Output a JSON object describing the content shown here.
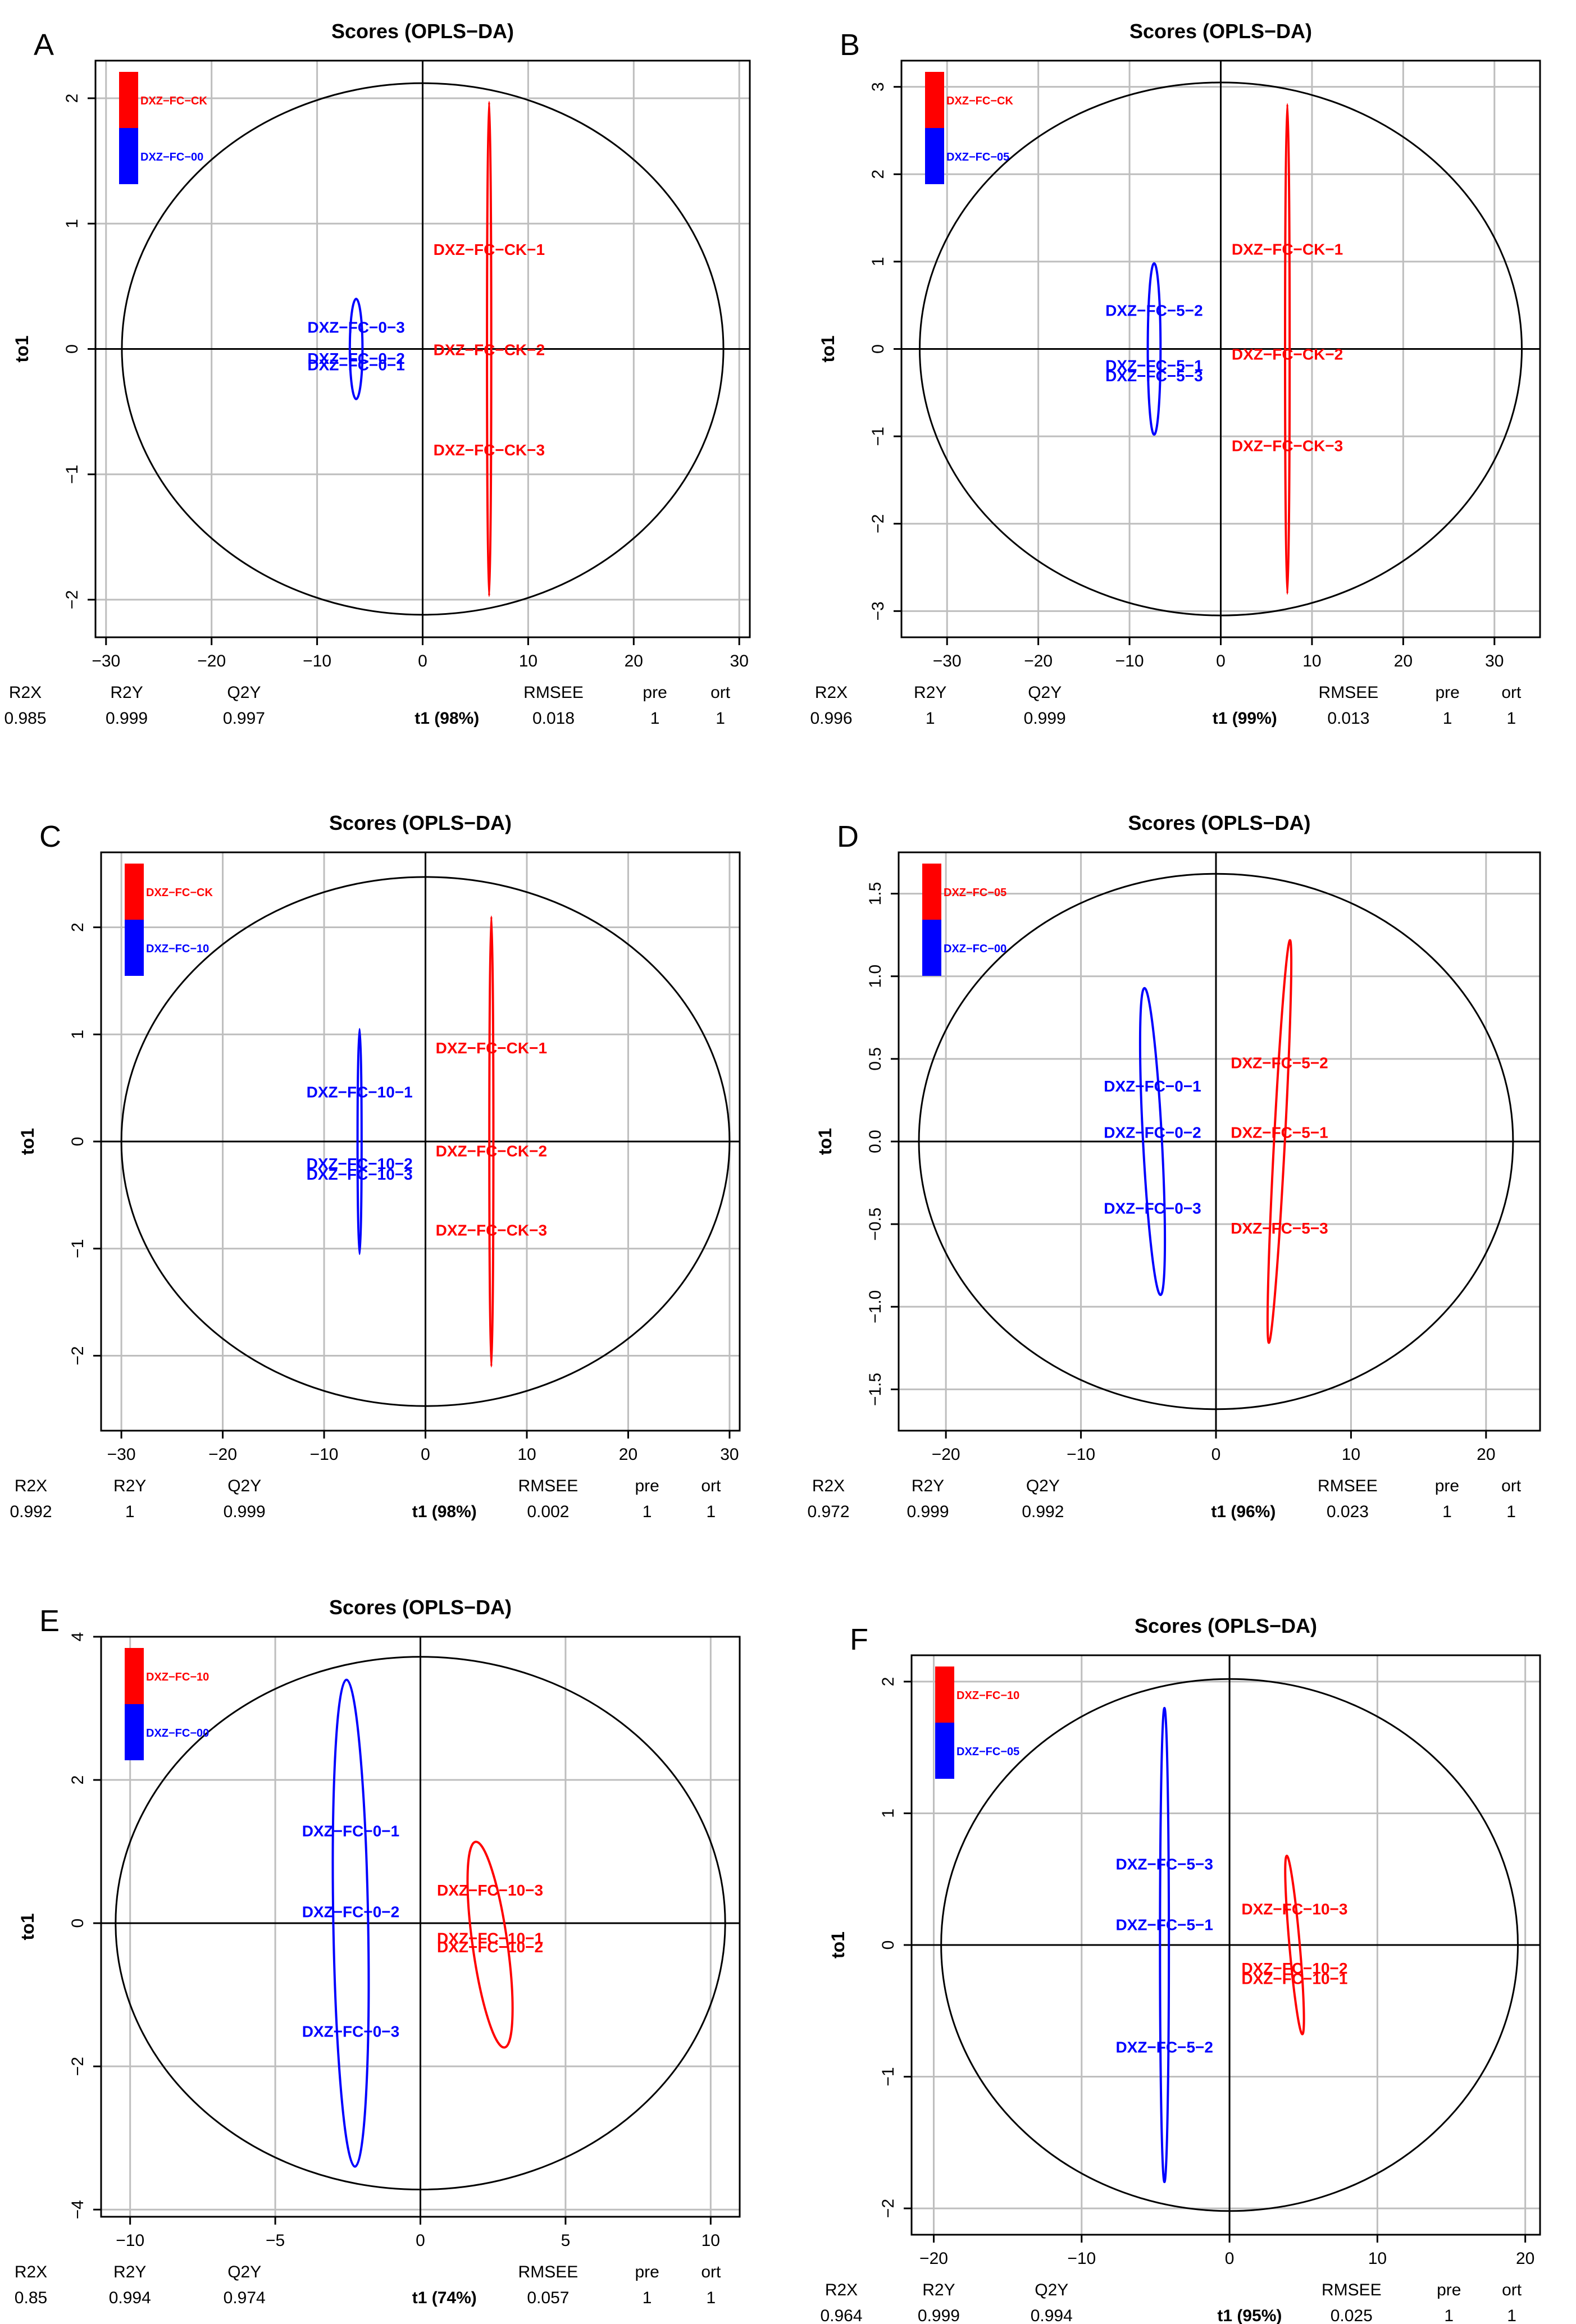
{
  "colors": {
    "red": "#ff0000",
    "blue": "#0000ff",
    "grid": "#bebebe",
    "axis": "#000000"
  },
  "stat_labels": [
    "R2X",
    "R2Y",
    "Q2Y",
    "RMSEE",
    "pre",
    "ort"
  ],
  "chart_data": [
    {
      "type": "scatter",
      "panel": "A",
      "title": "Scores (OPLS−DA)",
      "xlabel": "t1 (98%)",
      "ylabel": "to1",
      "xlim": [
        -31,
        31
      ],
      "ylim": [
        -2.3,
        2.3
      ],
      "xticks": [
        -30,
        -20,
        -10,
        0,
        10,
        20,
        30
      ],
      "yticks": [
        -2,
        -1,
        0,
        1,
        2
      ],
      "ellipse": {
        "rx": 28.5,
        "ry": 2.12
      },
      "legend": [
        {
          "name": "DXZ−FC−CK",
          "color": "red"
        },
        {
          "name": "DXZ−FC−00",
          "color": "blue"
        }
      ],
      "groups": [
        {
          "color": "red",
          "ellipse": {
            "cx": 6.3,
            "cy": 0,
            "rx": 0.2,
            "ry": 1.97
          },
          "points": [
            {
              "label": "DXZ−FC−CK−1",
              "x": 6.3,
              "y": 0.8
            },
            {
              "label": "DXZ−FC−CK−2",
              "x": 6.3,
              "y": 0.0
            },
            {
              "label": "DXZ−FC−CK−3",
              "x": 6.3,
              "y": -0.8
            }
          ]
        },
        {
          "color": "blue",
          "ellipse": {
            "cx": -6.3,
            "cy": 0,
            "rx": 0.6,
            "ry": 0.4
          },
          "points": [
            {
              "label": "DXZ−FC−0−3",
              "x": -6.3,
              "y": 0.18
            },
            {
              "label": "DXZ−FC−0−2",
              "x": -6.3,
              "y": -0.07
            },
            {
              "label": "DXZ−FC−0−1",
              "x": -6.3,
              "y": -0.12
            }
          ]
        }
      ],
      "stats": {
        "R2X": "0.985",
        "R2Y": "0.999",
        "Q2Y": "0.997",
        "RMSEE": "0.018",
        "pre": "1",
        "ort": "1"
      }
    },
    {
      "type": "scatter",
      "panel": "B",
      "title": "Scores (OPLS−DA)",
      "xlabel": "t1 (99%)",
      "ylabel": "to1",
      "xlim": [
        -35,
        35
      ],
      "ylim": [
        -3.3,
        3.3
      ],
      "xticks": [
        -30,
        -20,
        -10,
        0,
        10,
        20,
        30
      ],
      "yticks": [
        -3,
        -2,
        -1,
        0,
        1,
        2,
        3
      ],
      "ellipse": {
        "rx": 33,
        "ry": 3.05
      },
      "legend": [
        {
          "name": "DXZ−FC−CK",
          "color": "red"
        },
        {
          "name": "DXZ−FC−05",
          "color": "blue"
        }
      ],
      "groups": [
        {
          "color": "red",
          "ellipse": {
            "cx": 7.3,
            "cy": 0,
            "rx": 0.25,
            "ry": 2.8
          },
          "points": [
            {
              "label": "DXZ−FC−CK−1",
              "x": 7.3,
              "y": 1.15
            },
            {
              "label": "DXZ−FC−CK−2",
              "x": 7.3,
              "y": -0.05
            },
            {
              "label": "DXZ−FC−CK−3",
              "x": 7.3,
              "y": -1.1
            }
          ]
        },
        {
          "color": "blue",
          "ellipse": {
            "cx": -7.3,
            "cy": 0,
            "rx": 0.7,
            "ry": 0.98
          },
          "points": [
            {
              "label": "DXZ−FC−5−2",
              "x": -7.3,
              "y": 0.45
            },
            {
              "label": "DXZ−FC−5−1",
              "x": -7.3,
              "y": -0.18
            },
            {
              "label": "DXZ−FC−5−3",
              "x": -7.3,
              "y": -0.3
            }
          ]
        }
      ],
      "stats": {
        "R2X": "0.996",
        "R2Y": "1",
        "Q2Y": "0.999",
        "RMSEE": "0.013",
        "pre": "1",
        "ort": "1"
      }
    },
    {
      "type": "scatter",
      "panel": "C",
      "title": "Scores (OPLS−DA)",
      "xlabel": "t1 (98%)",
      "ylabel": "to1",
      "xlim": [
        -32,
        31
      ],
      "ylim": [
        -2.7,
        2.7
      ],
      "xticks": [
        -30,
        -20,
        -10,
        0,
        10,
        20,
        30
      ],
      "yticks": [
        -2,
        -1,
        0,
        1,
        2
      ],
      "ellipse": {
        "rx": 30,
        "ry": 2.47
      },
      "legend": [
        {
          "name": "DXZ−FC−CK",
          "color": "red"
        },
        {
          "name": "DXZ−FC−10",
          "color": "blue"
        }
      ],
      "groups": [
        {
          "color": "red",
          "ellipse": {
            "cx": 6.5,
            "cy": 0,
            "rx": 0.2,
            "ry": 2.1
          },
          "points": [
            {
              "label": "DXZ−FC−CK−1",
              "x": 6.5,
              "y": 0.88
            },
            {
              "label": "DXZ−FC−CK−2",
              "x": 6.5,
              "y": -0.08
            },
            {
              "label": "DXZ−FC−CK−3",
              "x": 6.5,
              "y": -0.82
            }
          ]
        },
        {
          "color": "blue",
          "ellipse": {
            "cx": -6.5,
            "cy": 0,
            "rx": 0.2,
            "ry": 1.05
          },
          "points": [
            {
              "label": "DXZ−FC−10−1",
              "x": -6.5,
              "y": 0.47
            },
            {
              "label": "DXZ−FC−10−2",
              "x": -6.5,
              "y": -0.2
            },
            {
              "label": "DXZ−FC−10−3",
              "x": -6.5,
              "y": -0.3
            }
          ]
        }
      ],
      "stats": {
        "R2X": "0.992",
        "R2Y": "1",
        "Q2Y": "0.999",
        "RMSEE": "0.002",
        "pre": "1",
        "ort": "1"
      }
    },
    {
      "type": "scatter",
      "panel": "D",
      "title": "Scores (OPLS−DA)",
      "xlabel": "t1 (96%)",
      "ylabel": "to1",
      "xlim": [
        -23.5,
        24
      ],
      "ylim": [
        -1.75,
        1.75
      ],
      "xticks": [
        -20,
        -10,
        0,
        10,
        20
      ],
      "yticks": [
        -1.5,
        -1.0,
        -0.5,
        0.0,
        0.5,
        1.0,
        1.5
      ],
      "ellipse": {
        "rx": 22,
        "ry": 1.62
      },
      "legend": [
        {
          "name": "DXZ−FC−05",
          "color": "red"
        },
        {
          "name": "DXZ−FC−00",
          "color": "blue"
        }
      ],
      "groups": [
        {
          "color": "red",
          "ellipse": {
            "cx": 4.7,
            "cy": 0,
            "rx": 0.4,
            "ry": 1.22,
            "rotate": 3
          },
          "points": [
            {
              "label": "DXZ−FC−5−2",
              "x": 4.7,
              "y": 0.48
            },
            {
              "label": "DXZ−FC−5−1",
              "x": 4.7,
              "y": 0.06
            },
            {
              "label": "DXZ−FC−5−3",
              "x": 4.7,
              "y": -0.52
            }
          ]
        },
        {
          "color": "blue",
          "ellipse": {
            "cx": -4.7,
            "cy": 0,
            "rx": 0.7,
            "ry": 0.93,
            "rotate": -3
          },
          "points": [
            {
              "label": "DXZ−FC−0−1",
              "x": -4.7,
              "y": 0.34
            },
            {
              "label": "DXZ−FC−0−2",
              "x": -4.7,
              "y": 0.06
            },
            {
              "label": "DXZ−FC−0−3",
              "x": -4.7,
              "y": -0.4
            }
          ]
        }
      ],
      "stats": {
        "R2X": "0.972",
        "R2Y": "0.999",
        "Q2Y": "0.992",
        "RMSEE": "0.023",
        "pre": "1",
        "ort": "1"
      }
    },
    {
      "type": "scatter",
      "panel": "E",
      "title": "Scores (OPLS−DA)",
      "xlabel": "t1 (74%)",
      "ylabel": "to1",
      "xlim": [
        -11,
        11
      ],
      "ylim": [
        -4.1,
        4.0
      ],
      "xticks": [
        -10,
        -5,
        0,
        5,
        10
      ],
      "yticks": [
        -4,
        -2,
        0,
        2,
        4
      ],
      "ellipse": {
        "rx": 10.5,
        "ry": 3.72
      },
      "legend": [
        {
          "name": "DXZ−FC−10",
          "color": "red"
        },
        {
          "name": "DXZ−FC−00",
          "color": "blue"
        }
      ],
      "groups": [
        {
          "color": "red",
          "ellipse": {
            "cx": 2.4,
            "cy": -0.3,
            "rx": 0.6,
            "ry": 1.45,
            "rotate": -8
          },
          "points": [
            {
              "label": "DXZ−FC−10−3",
              "x": 2.4,
              "y": 0.47
            },
            {
              "label": "DXZ−FC−10−1",
              "x": 2.4,
              "y": -0.2
            },
            {
              "label": "DXZ−FC−10−2",
              "x": 2.4,
              "y": -0.32
            }
          ]
        },
        {
          "color": "blue",
          "ellipse": {
            "cx": -2.4,
            "cy": 0,
            "rx": 0.6,
            "ry": 3.4,
            "rotate": -1
          },
          "points": [
            {
              "label": "DXZ−FC−0−1",
              "x": -2.4,
              "y": 1.3
            },
            {
              "label": "DXZ−FC−0−2",
              "x": -2.4,
              "y": 0.17
            },
            {
              "label": "DXZ−FC−0−3",
              "x": -2.4,
              "y": -1.5
            }
          ]
        }
      ],
      "stats": {
        "R2X": "0.85",
        "R2Y": "0.994",
        "Q2Y": "0.974",
        "RMSEE": "0.057",
        "pre": "1",
        "ort": "1"
      }
    },
    {
      "type": "scatter",
      "panel": "F",
      "title": "Scores (OPLS−DA)",
      "xlabel": "t1 (95%)",
      "ylabel": "to1",
      "xlim": [
        -21.5,
        21
      ],
      "ylim": [
        -2.2,
        2.2
      ],
      "xticks": [
        -20,
        -10,
        0,
        10,
        20
      ],
      "yticks": [
        -2,
        -1,
        0,
        1,
        2
      ],
      "ellipse": {
        "rx": 19.5,
        "ry": 2.02
      },
      "legend": [
        {
          "name": "DXZ−FC−10",
          "color": "red"
        },
        {
          "name": "DXZ−FC−05",
          "color": "blue"
        }
      ],
      "groups": [
        {
          "color": "red",
          "ellipse": {
            "cx": 4.4,
            "cy": 0,
            "rx": 0.35,
            "ry": 0.68,
            "rotate": -5
          },
          "points": [
            {
              "label": "DXZ−FC−10−3",
              "x": 4.4,
              "y": 0.28
            },
            {
              "label": "DXZ−FC−10−2",
              "x": 4.4,
              "y": -0.17
            },
            {
              "label": "DXZ−FC−10−1",
              "x": 4.4,
              "y": -0.25
            }
          ]
        },
        {
          "color": "blue",
          "ellipse": {
            "cx": -4.4,
            "cy": 0,
            "rx": 0.3,
            "ry": 1.8
          },
          "points": [
            {
              "label": "DXZ−FC−5−3",
              "x": -4.4,
              "y": 0.62
            },
            {
              "label": "DXZ−FC−5−1",
              "x": -4.4,
              "y": 0.16
            },
            {
              "label": "DXZ−FC−5−2",
              "x": -4.4,
              "y": -0.77
            }
          ]
        }
      ],
      "stats": {
        "R2X": "0.964",
        "R2Y": "0.999",
        "Q2Y": "0.994",
        "RMSEE": "0.025",
        "pre": "1",
        "ort": "1"
      }
    }
  ]
}
